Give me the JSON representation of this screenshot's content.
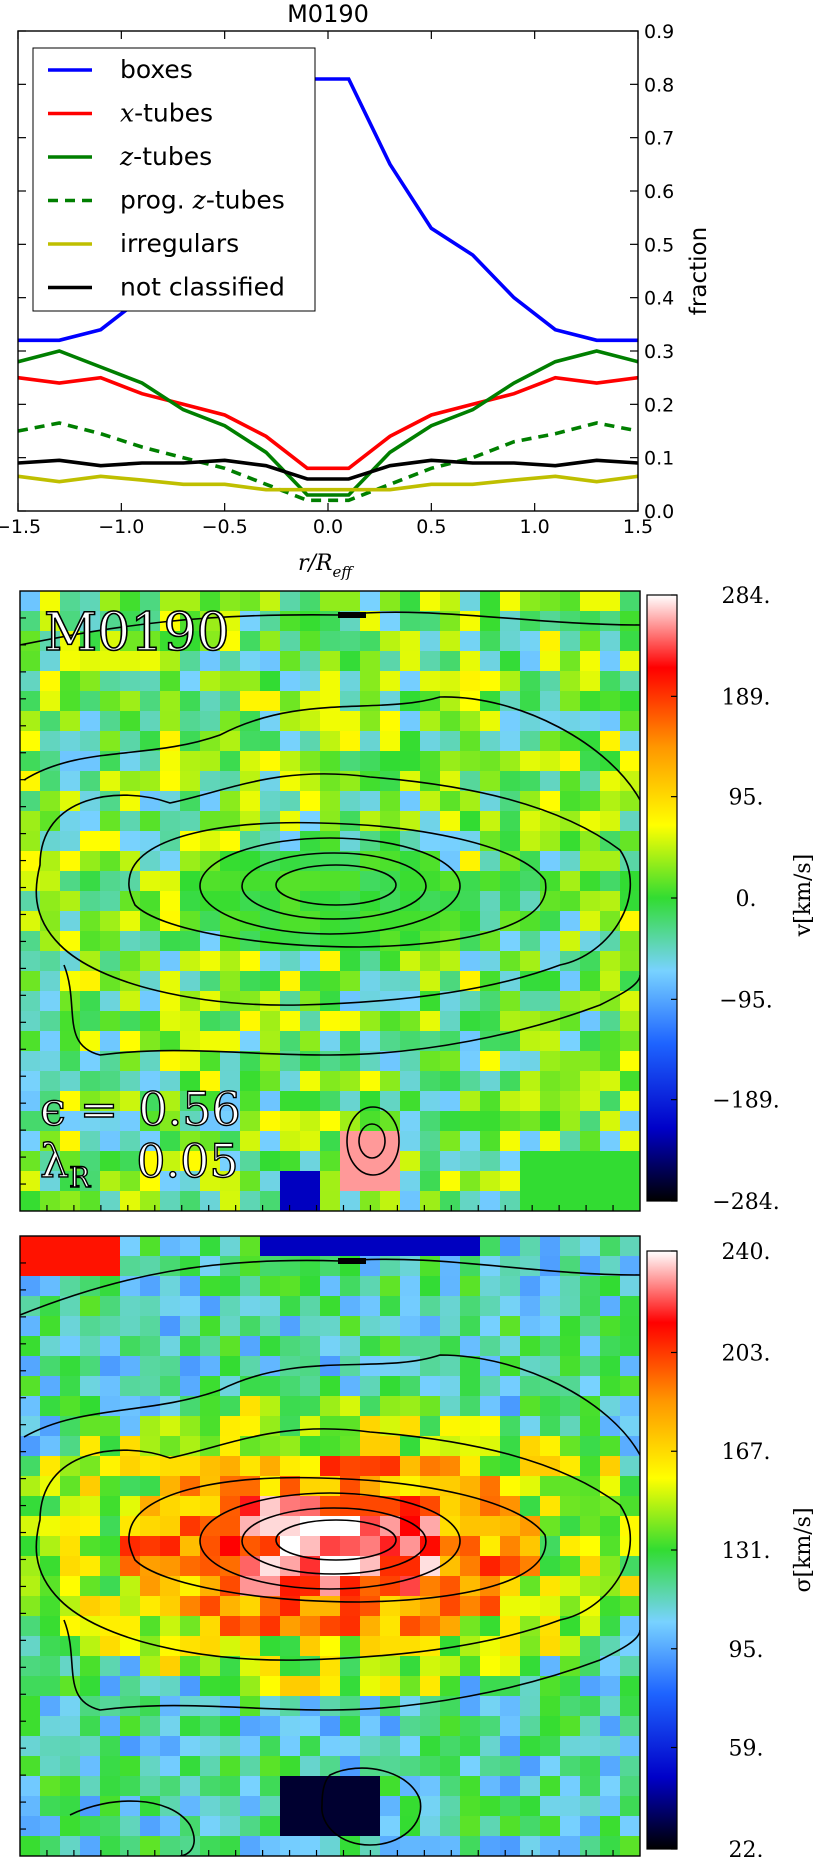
{
  "chart_data": [
    {
      "type": "line",
      "title": "M0190",
      "xlabel": "r/R",
      "xlabel_sub": "eff",
      "ylabel": "fraction",
      "xlim": [
        -1.5,
        1.5
      ],
      "ylim": [
        0.0,
        0.9
      ],
      "x_ticks": [
        "−1.5",
        "−1.0",
        "−0.5",
        "0.0",
        "0.5",
        "1.0",
        "1.5"
      ],
      "x_tick_values": [
        -1.5,
        -1.0,
        -0.5,
        0.0,
        0.5,
        1.0,
        1.5
      ],
      "y_ticks": [
        "0.0",
        "0.1",
        "0.2",
        "0.3",
        "0.4",
        "0.5",
        "0.6",
        "0.7",
        "0.8",
        "0.9"
      ],
      "y_tick_values": [
        0,
        0.1,
        0.2,
        0.3,
        0.4,
        0.5,
        0.6,
        0.7,
        0.8,
        0.9
      ],
      "y_axis_side": "right",
      "legend_position": "top-left",
      "x": [
        -1.5,
        -1.3,
        -1.1,
        -0.9,
        -0.7,
        -0.5,
        -0.3,
        -0.1,
        0.1,
        0.3,
        0.5,
        0.7,
        0.9,
        1.1,
        1.3,
        1.5
      ],
      "series": [
        {
          "name": "boxes",
          "name_parts": [
            "boxes"
          ],
          "color": "#0000ff",
          "dash": "solid",
          "values": [
            0.32,
            0.32,
            0.34,
            0.4,
            0.47,
            0.53,
            0.65,
            0.81,
            0.81,
            0.65,
            0.53,
            0.48,
            0.4,
            0.34,
            0.32,
            0.32
          ]
        },
        {
          "name": "x-tubes",
          "name_parts": [
            "x",
            "-tubes"
          ],
          "color": "#ff0000",
          "dash": "solid",
          "values": [
            0.25,
            0.24,
            0.25,
            0.22,
            0.2,
            0.18,
            0.14,
            0.08,
            0.08,
            0.14,
            0.18,
            0.2,
            0.22,
            0.25,
            0.24,
            0.25
          ]
        },
        {
          "name": "z-tubes",
          "name_parts": [
            "z",
            "-tubes"
          ],
          "color": "#007f00",
          "dash": "solid",
          "values": [
            0.28,
            0.3,
            0.27,
            0.24,
            0.19,
            0.16,
            0.11,
            0.03,
            0.03,
            0.11,
            0.16,
            0.19,
            0.24,
            0.28,
            0.3,
            0.28
          ]
        },
        {
          "name": "prog. z-tubes",
          "name_parts": [
            "prog. ",
            "z",
            "-tubes"
          ],
          "color": "#007f00",
          "dash": "dashed",
          "values": [
            0.15,
            0.165,
            0.145,
            0.12,
            0.1,
            0.08,
            0.05,
            0.02,
            0.02,
            0.05,
            0.08,
            0.1,
            0.13,
            0.145,
            0.165,
            0.15
          ]
        },
        {
          "name": "irregulars",
          "name_parts": [
            "irregulars"
          ],
          "color": "#bfbf00",
          "dash": "solid",
          "values": [
            0.065,
            0.055,
            0.065,
            0.058,
            0.05,
            0.05,
            0.04,
            0.04,
            0.04,
            0.04,
            0.05,
            0.05,
            0.058,
            0.065,
            0.055,
            0.065
          ]
        },
        {
          "name": "not classified",
          "name_parts": [
            "not classified"
          ],
          "color": "#000000",
          "dash": "solid",
          "values": [
            0.09,
            0.095,
            0.085,
            0.09,
            0.09,
            0.095,
            0.085,
            0.06,
            0.06,
            0.085,
            0.095,
            0.09,
            0.09,
            0.085,
            0.095,
            0.09
          ]
        }
      ]
    },
    {
      "type": "heatmap",
      "panel_label": "M0190",
      "annotation_lines": [
        [
          "ϵ",
          "=",
          "0.56"
        ],
        [
          "λ",
          "R",
          "0.05"
        ]
      ],
      "colorbar_label": "v[km/s]",
      "colorbar_ticks": [
        "284.",
        "189.",
        "95.",
        "0.",
        "−95.",
        "−189.",
        "−284."
      ],
      "colorbar_tick_values": [
        284,
        189,
        95,
        0,
        -95,
        -189,
        -284
      ],
      "colormap": [
        "#000000",
        "#0000c8",
        "#1e64ff",
        "#78d2ff",
        "#32dc32",
        "#ffff00",
        "#ff9600",
        "#ff0000",
        "#ffffff"
      ],
      "value_range": [
        -284,
        284
      ]
    },
    {
      "type": "heatmap",
      "colorbar_label": "σ[km/s]",
      "colorbar_ticks": [
        "240.",
        "203.",
        "167.",
        "131.",
        "95.",
        "59.",
        "22."
      ],
      "colorbar_tick_values": [
        240,
        203,
        167,
        131,
        95,
        59,
        22
      ],
      "colormap": [
        "#000000",
        "#0000c8",
        "#1e64ff",
        "#78d2ff",
        "#32dc32",
        "#ffff00",
        "#ff9600",
        "#ff0000",
        "#ffffff"
      ],
      "value_range": [
        22,
        240
      ]
    }
  ]
}
